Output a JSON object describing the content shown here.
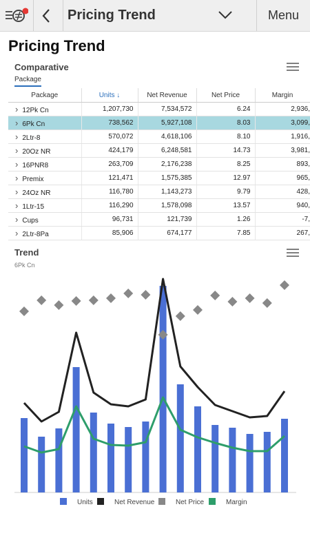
{
  "app_bar": {
    "title": "Pricing Trend",
    "menu": "Menu"
  },
  "page": {
    "title": "Pricing Trend"
  },
  "comparative": {
    "title": "Comparative",
    "tab": "Package",
    "table": {
      "columns": [
        "Package",
        "Units",
        "Net Revenue",
        "Net Price",
        "Margin"
      ],
      "sorted_column": 1,
      "selected_row": 1,
      "rows": [
        [
          "12Pk Cn",
          "1,207,730",
          "7,534,572",
          "6.24",
          "2,936,"
        ],
        [
          "6Pk Cn",
          "738,562",
          "5,927,108",
          "8.03",
          "3,099,"
        ],
        [
          "2Ltr-8",
          "570,072",
          "4,618,106",
          "8.10",
          "1,916,"
        ],
        [
          "20Oz NR",
          "424,179",
          "6,248,581",
          "14.73",
          "3,981,"
        ],
        [
          "16PNR8",
          "263,709",
          "2,176,238",
          "8.25",
          "893,"
        ],
        [
          "Premix",
          "121,471",
          "1,575,385",
          "12.97",
          "965,"
        ],
        [
          "24Oz NR",
          "116,780",
          "1,143,273",
          "9.79",
          "428,"
        ],
        [
          "1Ltr-15",
          "116,290",
          "1,578,098",
          "13.57",
          "940,"
        ],
        [
          "Cups",
          "96,731",
          "121,739",
          "1.26",
          "-7,"
        ],
        [
          "2Ltr-8Pa",
          "85,906",
          "674,177",
          "7.85",
          "267,"
        ]
      ]
    }
  },
  "chart_data": {
    "type": "combo",
    "title": "Trend",
    "subtitle": "6Pk Cn",
    "series": [
      {
        "name": "Units",
        "type": "bar",
        "color": "#4a6fd4",
        "values": [
          108,
          81,
          93,
          182,
          116,
          100,
          95,
          103,
          300,
          157,
          125,
          98,
          94,
          85,
          88,
          107
        ]
      },
      {
        "name": "Net Revenue",
        "type": "line",
        "color": "#222222",
        "values": [
          130,
          103,
          117,
          232,
          145,
          128,
          125,
          135,
          310,
          183,
          153,
          127,
          118,
          109,
          111,
          147
        ]
      },
      {
        "name": "Net Price",
        "type": "diamond",
        "color": "#888888",
        "values": [
          263,
          279,
          272,
          278,
          279,
          282,
          289,
          287,
          229,
          256,
          265,
          286,
          277,
          282,
          275,
          301
        ]
      },
      {
        "name": "Margin",
        "type": "line",
        "color": "#2e9e6b",
        "values": [
          67,
          58,
          63,
          125,
          78,
          69,
          68,
          73,
          138,
          91,
          80,
          72,
          65,
          60,
          60,
          82
        ]
      }
    ]
  }
}
